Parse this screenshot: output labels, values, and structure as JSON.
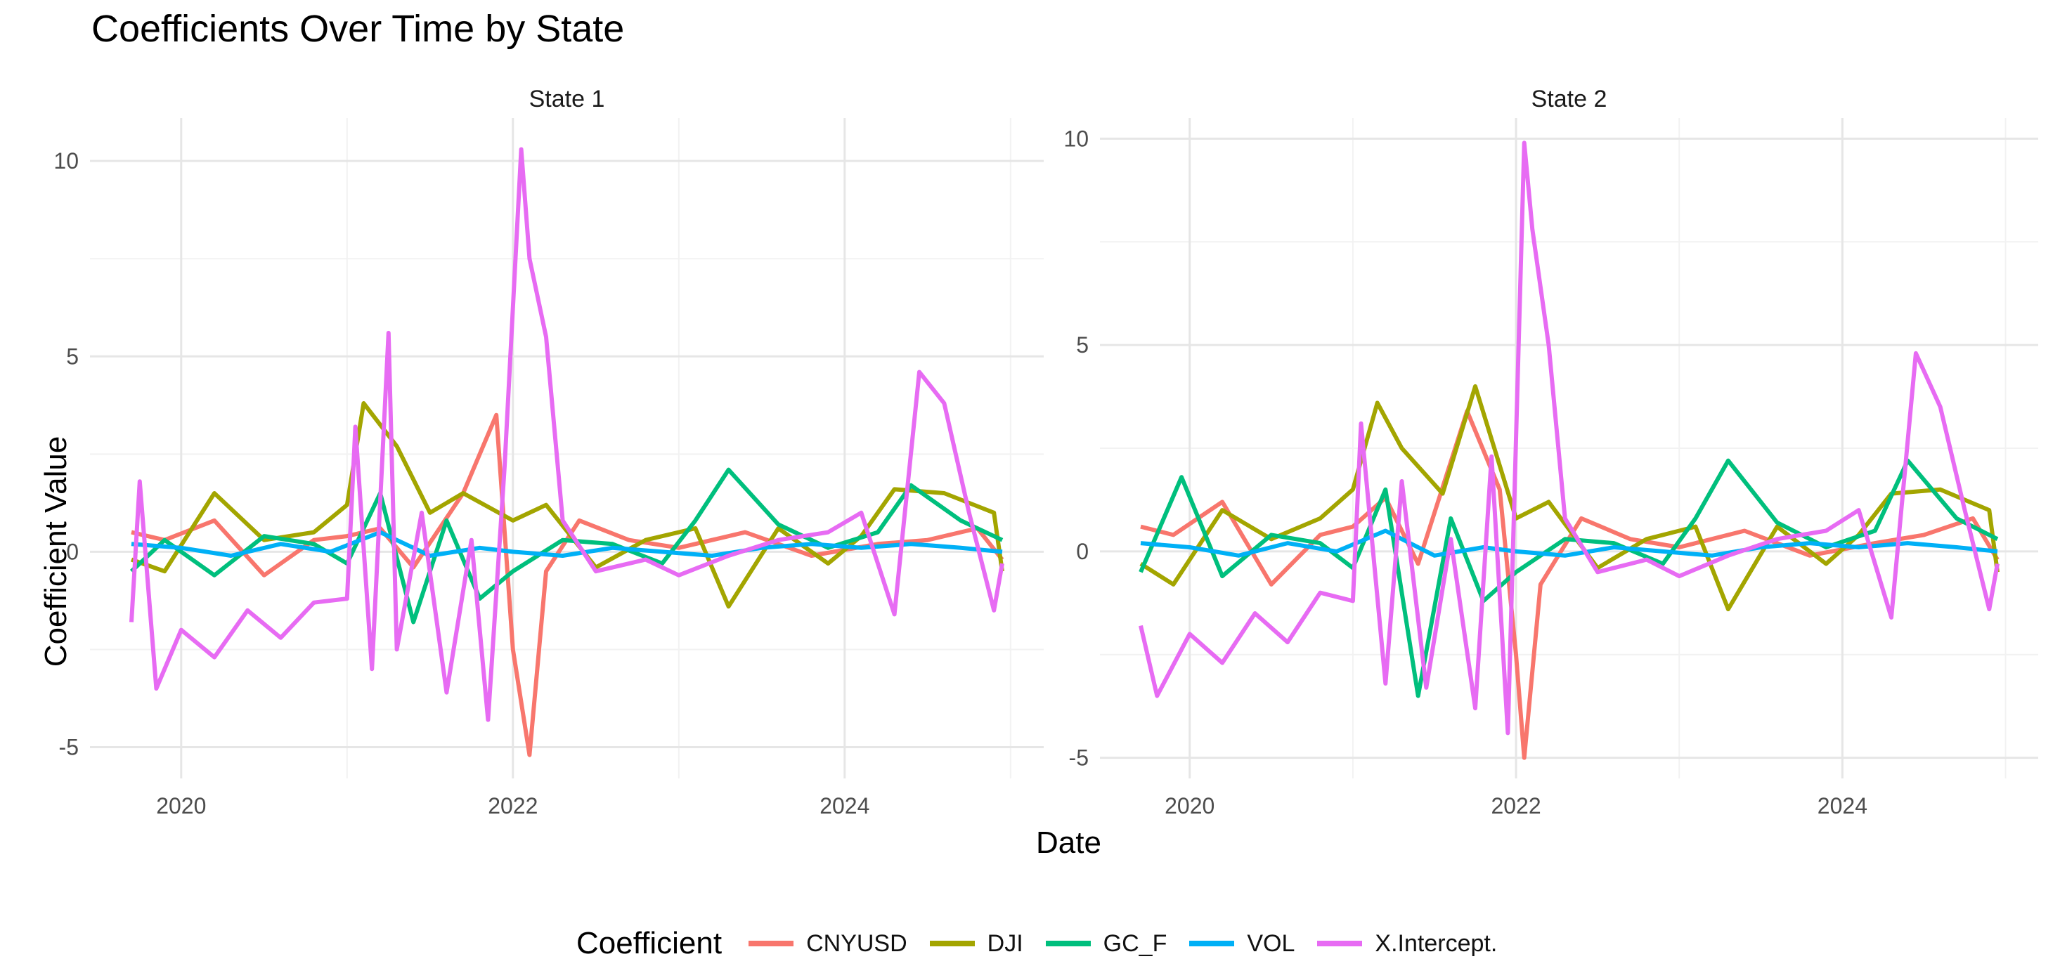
{
  "chart_data": {
    "type": "line",
    "title": "Coefficients Over Time by State",
    "xlabel": "Date",
    "ylabel": "Coefficient Value",
    "legend_title": "Coefficient",
    "legend_position": "bottom",
    "x_tick_labels": [
      "2020",
      "2022",
      "2024"
    ],
    "x_tick_values": [
      2020,
      2022,
      2024
    ],
    "xlim": [
      2019.45,
      2025.2
    ],
    "series_meta": [
      {
        "name": "CNYUSD",
        "color": "#F8766D"
      },
      {
        "name": "DJI",
        "color": "#A3A500"
      },
      {
        "name": "GC_F",
        "color": "#00BF7D"
      },
      {
        "name": "VOL",
        "color": "#00B0F6"
      },
      {
        "name": "X.Intercept.",
        "color": "#E76BF3"
      }
    ],
    "panels": [
      {
        "strip": "State 1",
        "ylim": [
          -5.8,
          11.1
        ],
        "y_tick_values": [
          -5,
          0,
          5,
          10
        ],
        "y_tick_labels": [
          "-5",
          "0",
          "5",
          "10"
        ],
        "series": [
          {
            "name": "CNYUSD",
            "x": [
              2019.7,
              2019.9,
              2020.2,
              2020.5,
              2020.8,
              2021.0,
              2021.2,
              2021.4,
              2021.7,
              2021.9,
              2022.0,
              2022.1,
              2022.2,
              2022.4,
              2022.7,
              2023.0,
              2023.4,
              2023.8,
              2024.2,
              2024.5,
              2024.8,
              2024.95
            ],
            "values": [
              0.5,
              0.3,
              0.8,
              -0.6,
              0.3,
              0.4,
              0.6,
              -0.4,
              1.5,
              3.5,
              -2.5,
              -5.2,
              -0.5,
              0.8,
              0.3,
              0.1,
              0.5,
              -0.1,
              0.2,
              0.3,
              0.6,
              -0.2
            ]
          },
          {
            "name": "DJI",
            "x": [
              2019.7,
              2019.9,
              2020.2,
              2020.5,
              2020.8,
              2021.0,
              2021.1,
              2021.3,
              2021.5,
              2021.7,
              2022.0,
              2022.2,
              2022.5,
              2022.8,
              2023.1,
              2023.3,
              2023.6,
              2023.9,
              2024.1,
              2024.3,
              2024.6,
              2024.9,
              2024.95
            ],
            "values": [
              -0.2,
              -0.5,
              1.5,
              0.3,
              0.5,
              1.2,
              3.8,
              2.7,
              1.0,
              1.5,
              0.8,
              1.2,
              -0.4,
              0.3,
              0.6,
              -1.4,
              0.6,
              -0.3,
              0.4,
              1.6,
              1.5,
              1.0,
              -0.5
            ]
          },
          {
            "name": "GC_F",
            "x": [
              2019.7,
              2019.9,
              2020.2,
              2020.5,
              2020.8,
              2021.0,
              2021.2,
              2021.4,
              2021.6,
              2021.8,
              2022.0,
              2022.3,
              2022.6,
              2022.9,
              2023.1,
              2023.3,
              2023.6,
              2023.9,
              2024.2,
              2024.4,
              2024.7,
              2024.95
            ],
            "values": [
              -0.5,
              0.3,
              -0.6,
              0.4,
              0.2,
              -0.3,
              1.5,
              -1.8,
              0.8,
              -1.2,
              -0.5,
              0.3,
              0.2,
              -0.3,
              0.8,
              2.1,
              0.7,
              0.1,
              0.5,
              1.7,
              0.8,
              0.3
            ]
          },
          {
            "name": "VOL",
            "x": [
              2019.7,
              2020.0,
              2020.3,
              2020.6,
              2020.9,
              2021.2,
              2021.5,
              2021.8,
              2022.0,
              2022.3,
              2022.6,
              2022.9,
              2023.2,
              2023.5,
              2023.8,
              2024.1,
              2024.4,
              2024.7,
              2024.95
            ],
            "values": [
              0.2,
              0.1,
              -0.1,
              0.2,
              0.0,
              0.5,
              -0.1,
              0.1,
              0.0,
              -0.1,
              0.1,
              0.0,
              -0.1,
              0.1,
              0.2,
              0.1,
              0.2,
              0.1,
              0.0
            ]
          },
          {
            "name": "X.Intercept.",
            "x": [
              2019.7,
              2019.75,
              2019.85,
              2020.0,
              2020.2,
              2020.4,
              2020.6,
              2020.8,
              2021.0,
              2021.05,
              2021.15,
              2021.25,
              2021.3,
              2021.45,
              2021.6,
              2021.75,
              2021.85,
              2021.95,
              2022.05,
              2022.1,
              2022.2,
              2022.3,
              2022.5,
              2022.8,
              2023.0,
              2023.3,
              2023.6,
              2023.9,
              2024.1,
              2024.3,
              2024.45,
              2024.6,
              2024.75,
              2024.9,
              2024.95
            ],
            "values": [
              -1.8,
              1.8,
              -3.5,
              -2.0,
              -2.7,
              -1.5,
              -2.2,
              -1.3,
              -1.2,
              3.2,
              -3.0,
              5.6,
              -2.5,
              1.0,
              -3.6,
              0.3,
              -4.3,
              2.2,
              10.3,
              7.5,
              5.5,
              0.8,
              -0.5,
              -0.2,
              -0.6,
              -0.1,
              0.3,
              0.5,
              1.0,
              -1.6,
              4.6,
              3.8,
              1.0,
              -1.5,
              -0.3
            ]
          }
        ]
      },
      {
        "strip": "State 2",
        "ylim": [
          -5.5,
          10.5
        ],
        "y_tick_values": [
          -5,
          0,
          5,
          10
        ],
        "y_tick_labels": [
          "-5",
          "0",
          "5",
          "10"
        ],
        "series": [
          {
            "name": "CNYUSD",
            "x": [
              2019.7,
              2019.9,
              2020.2,
              2020.5,
              2020.8,
              2021.0,
              2021.2,
              2021.4,
              2021.7,
              2021.9,
              2022.0,
              2022.05,
              2022.15,
              2022.4,
              2022.7,
              2023.0,
              2023.4,
              2023.8,
              2024.2,
              2024.5,
              2024.8,
              2024.95
            ],
            "values": [
              0.6,
              0.4,
              1.2,
              -0.8,
              0.4,
              0.6,
              1.3,
              -0.3,
              3.4,
              1.5,
              -2.5,
              -5.0,
              -0.8,
              0.8,
              0.3,
              0.1,
              0.5,
              -0.1,
              0.2,
              0.4,
              0.8,
              -0.2
            ]
          },
          {
            "name": "DJI",
            "x": [
              2019.7,
              2019.9,
              2020.2,
              2020.5,
              2020.8,
              2021.0,
              2021.15,
              2021.3,
              2021.55,
              2021.75,
              2022.0,
              2022.2,
              2022.5,
              2022.8,
              2023.1,
              2023.3,
              2023.6,
              2023.9,
              2024.1,
              2024.3,
              2024.6,
              2024.9,
              2024.95
            ],
            "values": [
              -0.3,
              -0.8,
              1.0,
              0.3,
              0.8,
              1.5,
              3.6,
              2.5,
              1.4,
              4.0,
              0.8,
              1.2,
              -0.4,
              0.3,
              0.6,
              -1.4,
              0.6,
              -0.3,
              0.4,
              1.4,
              1.5,
              1.0,
              -0.5
            ]
          },
          {
            "name": "GC_F",
            "x": [
              2019.7,
              2019.95,
              2020.2,
              2020.5,
              2020.8,
              2021.0,
              2021.2,
              2021.4,
              2021.6,
              2021.8,
              2022.0,
              2022.3,
              2022.6,
              2022.9,
              2023.1,
              2023.3,
              2023.6,
              2023.9,
              2024.2,
              2024.4,
              2024.7,
              2024.95
            ],
            "values": [
              -0.5,
              1.8,
              -0.6,
              0.4,
              0.2,
              -0.4,
              1.5,
              -3.5,
              0.8,
              -1.2,
              -0.5,
              0.3,
              0.2,
              -0.3,
              0.8,
              2.2,
              0.7,
              0.1,
              0.5,
              2.2,
              0.8,
              0.3
            ]
          },
          {
            "name": "VOL",
            "x": [
              2019.7,
              2020.0,
              2020.3,
              2020.6,
              2020.9,
              2021.2,
              2021.5,
              2021.8,
              2022.0,
              2022.3,
              2022.6,
              2022.9,
              2023.2,
              2023.5,
              2023.8,
              2024.1,
              2024.4,
              2024.7,
              2024.95
            ],
            "values": [
              0.2,
              0.1,
              -0.1,
              0.2,
              0.0,
              0.5,
              -0.1,
              0.1,
              0.0,
              -0.1,
              0.1,
              0.0,
              -0.1,
              0.1,
              0.2,
              0.1,
              0.2,
              0.1,
              0.0
            ]
          },
          {
            "name": "X.Intercept.",
            "x": [
              2019.7,
              2019.8,
              2020.0,
              2020.2,
              2020.4,
              2020.6,
              2020.8,
              2021.0,
              2021.05,
              2021.2,
              2021.3,
              2021.45,
              2021.6,
              2021.75,
              2021.85,
              2021.95,
              2022.05,
              2022.1,
              2022.2,
              2022.3,
              2022.5,
              2022.8,
              2023.0,
              2023.3,
              2023.6,
              2023.9,
              2024.1,
              2024.3,
              2024.45,
              2024.6,
              2024.75,
              2024.9,
              2024.95
            ],
            "values": [
              -1.8,
              -3.5,
              -2.0,
              -2.7,
              -1.5,
              -2.2,
              -1.0,
              -1.2,
              3.1,
              -3.2,
              1.7,
              -3.3,
              0.3,
              -3.8,
              2.3,
              -4.4,
              9.9,
              7.8,
              5.0,
              0.8,
              -0.5,
              -0.2,
              -0.6,
              -0.1,
              0.3,
              0.5,
              1.0,
              -1.6,
              4.8,
              3.5,
              1.0,
              -1.4,
              -0.3
            ]
          }
        ]
      }
    ]
  }
}
